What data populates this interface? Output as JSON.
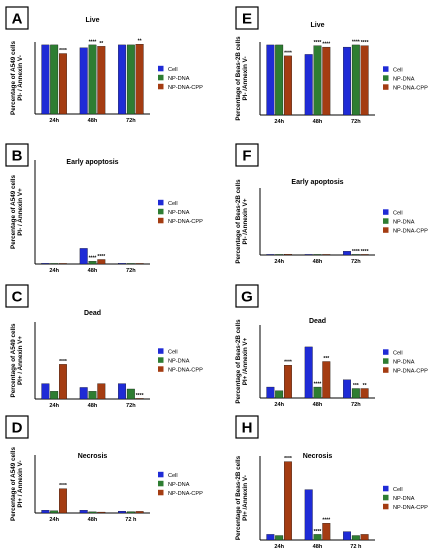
{
  "colors": {
    "Cell": "#1f2bd6",
    "NP-DNA": "#2e7d32",
    "NP-DNA-CPP": "#a43c12"
  },
  "chart_data": [
    {
      "panel": "A",
      "type": "bar",
      "title": "Live",
      "ylabel": [
        "Percentage of A549 cells",
        "PI- / Annexin V-"
      ],
      "categories": [
        "24h",
        "48h",
        "72h"
      ],
      "series": [
        {
          "name": "Cell",
          "values": [
            96,
            92,
            96
          ],
          "sig": [
            "",
            "",
            ""
          ]
        },
        {
          "name": "NP-DNA",
          "values": [
            96,
            96,
            96
          ],
          "sig": [
            "",
            "****",
            ""
          ]
        },
        {
          "name": "NP-DNA-CPP",
          "values": [
            84,
            94,
            97
          ],
          "sig": [
            "****",
            "**",
            "**"
          ]
        }
      ],
      "ylim": [
        0,
        100
      ]
    },
    {
      "panel": "B",
      "type": "bar",
      "title": "Early apoptosis",
      "ylabel": [
        "Percentage of A549 cells",
        "PI- / Annexin V+"
      ],
      "categories": [
        "24h",
        "48h",
        "72h"
      ],
      "series": [
        {
          "name": "Cell",
          "values": [
            0.2,
            4.5,
            0.2
          ],
          "sig": [
            "",
            "",
            ""
          ]
        },
        {
          "name": "NP-DNA",
          "values": [
            0.1,
            0.8,
            0.1
          ],
          "sig": [
            "",
            "****",
            ""
          ]
        },
        {
          "name": "NP-DNA-CPP",
          "values": [
            0.1,
            1.3,
            0.1
          ],
          "sig": [
            "",
            "****",
            ""
          ]
        }
      ],
      "ylim": [
        0,
        30
      ]
    },
    {
      "panel": "C",
      "type": "bar",
      "title": "Dead",
      "ylabel": [
        "Percentage of A549 cells",
        "PI+ / Annexin V+"
      ],
      "categories": [
        "24h",
        "48h",
        "72h"
      ],
      "series": [
        {
          "name": "Cell",
          "values": [
            2,
            1.5,
            2
          ],
          "sig": [
            "",
            "",
            ""
          ]
        },
        {
          "name": "NP-DNA",
          "values": [
            1,
            1,
            1.3
          ],
          "sig": [
            "",
            "",
            ""
          ]
        },
        {
          "name": "NP-DNA-CPP",
          "values": [
            4.5,
            2,
            0
          ],
          "sig": [
            "****",
            "",
            "****"
          ]
        }
      ],
      "ylim": [
        0,
        10
      ]
    },
    {
      "panel": "D",
      "type": "bar",
      "title": "Necrosis",
      "ylabel": [
        "Percentage of A549 cells",
        "PI+ / Annexin V-"
      ],
      "categories": [
        "24h",
        "48h",
        "72 h"
      ],
      "series": [
        {
          "name": "Cell",
          "values": [
            1.2,
            1.2,
            0.8
          ],
          "sig": [
            "",
            "",
            ""
          ]
        },
        {
          "name": "NP-DNA",
          "values": [
            1,
            0.5,
            0.6
          ],
          "sig": [
            "",
            "",
            ""
          ]
        },
        {
          "name": "NP-DNA-CPP",
          "values": [
            10.5,
            0.4,
            0.7
          ],
          "sig": [
            "****",
            "",
            ""
          ]
        }
      ],
      "ylim": [
        0,
        25
      ]
    },
    {
      "panel": "E",
      "type": "bar",
      "title": "Live",
      "ylabel": [
        "Percentage of Beas-2B cells",
        "PI- /Annexin V-"
      ],
      "categories": [
        "24h",
        "48h",
        "72h"
      ],
      "series": [
        {
          "name": "Cell",
          "values": [
            96,
            83,
            93
          ],
          "sig": [
            "",
            "",
            ""
          ]
        },
        {
          "name": "NP-DNA",
          "values": [
            96,
            95,
            96
          ],
          "sig": [
            "",
            "****",
            "****"
          ]
        },
        {
          "name": "NP-DNA-CPP",
          "values": [
            81,
            93,
            95
          ],
          "sig": [
            "****",
            "****",
            "****"
          ]
        }
      ],
      "ylim": [
        0,
        100
      ]
    },
    {
      "panel": "F",
      "type": "bar",
      "title": "Early apoptosis",
      "ylabel": [
        "Percentage of Beas-2B cells",
        "PI- /Annexin V+"
      ],
      "categories": [
        "24h",
        "48h",
        "72h"
      ],
      "series": [
        {
          "name": "Cell",
          "values": [
            0.2,
            0.1,
            1.4
          ],
          "sig": [
            "",
            "",
            ""
          ]
        },
        {
          "name": "NP-DNA",
          "values": [
            0.2,
            0.1,
            0.05
          ],
          "sig": [
            "",
            "",
            "****"
          ]
        },
        {
          "name": "NP-DNA-CPP",
          "values": [
            0.3,
            0.1,
            0.05
          ],
          "sig": [
            "",
            "",
            "****"
          ]
        }
      ],
      "ylim": [
        0,
        25
      ]
    },
    {
      "panel": "G",
      "type": "bar",
      "title": "Dead",
      "ylabel": [
        "Percentage of Beas-2B cells",
        "PI+ /Annexin V+"
      ],
      "categories": [
        "24h",
        "48h",
        "72h"
      ],
      "series": [
        {
          "name": "Cell",
          "values": [
            1.5,
            7,
            2.5
          ],
          "sig": [
            "",
            "",
            ""
          ]
        },
        {
          "name": "NP-DNA",
          "values": [
            1,
            1.5,
            1.3
          ],
          "sig": [
            "",
            "****",
            "***"
          ]
        },
        {
          "name": "NP-DNA-CPP",
          "values": [
            4.5,
            5,
            1.3
          ],
          "sig": [
            "****",
            "***",
            "**"
          ]
        }
      ],
      "ylim": [
        0,
        10
      ]
    },
    {
      "panel": "H",
      "type": "bar",
      "title": "Necrosis",
      "ylabel": [
        "Percentage of Beas-2B cells",
        "PI+ /Annexin V-"
      ],
      "categories": [
        "24h",
        "48h",
        "72 h"
      ],
      "series": [
        {
          "name": "Cell",
          "values": [
            1,
            9,
            1.5
          ],
          "sig": [
            "",
            "",
            ""
          ]
        },
        {
          "name": "NP-DNA",
          "values": [
            0.8,
            1,
            0.8
          ],
          "sig": [
            "",
            "****",
            ""
          ]
        },
        {
          "name": "NP-DNA-CPP",
          "values": [
            14,
            3,
            1
          ],
          "sig": [
            "****",
            "****",
            ""
          ]
        }
      ],
      "ylim": [
        0,
        15
      ]
    }
  ]
}
